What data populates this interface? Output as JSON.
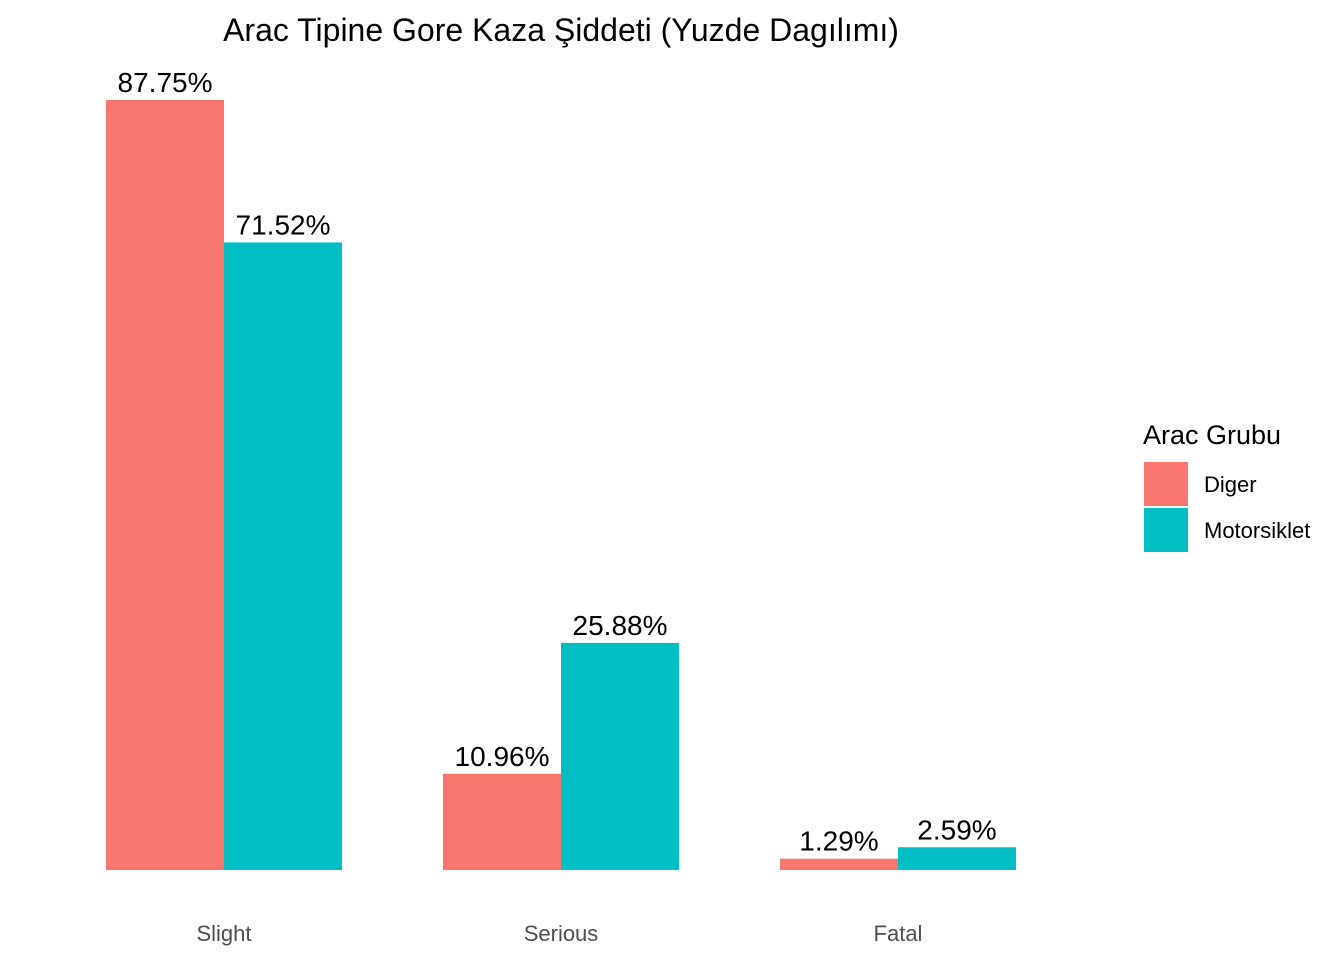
{
  "chart_data": {
    "type": "bar",
    "title": "Arac Tipine Gore Kaza Şiddeti (Yuzde Dagılımı)",
    "xlabel": "",
    "ylabel": "",
    "categories": [
      "Slight",
      "Serious",
      "Fatal"
    ],
    "series": [
      {
        "name": "Diger",
        "color": "#F8766D",
        "values": [
          87.75,
          10.96,
          1.29
        ],
        "labels": [
          "87.75%",
          "10.96%",
          "1.29%"
        ]
      },
      {
        "name": "Motorsiklet",
        "color": "#00BFC4",
        "values": [
          71.52,
          25.88,
          2.59
        ],
        "labels": [
          "71.52%",
          "25.88%",
          "2.59%"
        ]
      }
    ],
    "ylim": [
      0,
      100
    ],
    "grid": false,
    "legend": {
      "title": "Arac Grubu",
      "position": "right"
    }
  }
}
